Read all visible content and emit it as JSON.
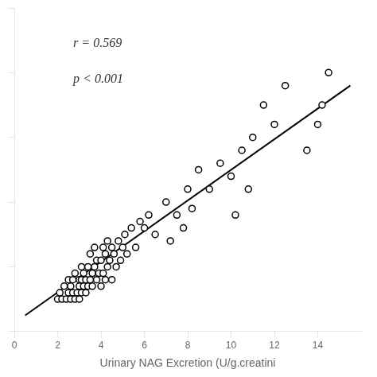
{
  "chart_data": {
    "type": "scatter",
    "xlabel": "Urinary NAG Excretion (U/g.creatini",
    "annotations": [
      "r = 0.569",
      "p < 0.001"
    ],
    "series": [
      {
        "type": "scatter",
        "marker": "open_circle",
        "color": "black",
        "x": [
          2.0,
          2.1,
          2.2,
          2.3,
          2.4,
          2.5,
          2.5,
          2.6,
          2.6,
          2.7,
          2.7,
          2.8,
          2.8,
          2.9,
          3.0,
          3.0,
          3.0,
          3.1,
          3.1,
          3.1,
          3.2,
          3.2,
          3.3,
          3.3,
          3.4,
          3.4,
          3.5,
          3.5,
          3.6,
          3.6,
          3.7,
          3.7,
          3.8,
          3.8,
          3.9,
          4.0,
          4.0,
          4.1,
          4.1,
          4.2,
          4.2,
          4.3,
          4.3,
          4.4,
          4.5,
          4.5,
          4.6,
          4.7,
          4.8,
          4.9,
          5.0,
          5.1,
          5.2,
          5.4,
          5.6,
          5.8,
          6.0,
          6.2,
          6.5,
          7.0,
          7.2,
          7.5,
          7.8,
          8.0,
          8.2,
          8.5,
          9.0,
          9.5,
          10.0,
          10.2,
          10.5,
          10.8,
          11.0,
          11.5,
          12.0,
          12.5,
          13.5,
          14.0,
          14.2,
          14.5
        ],
        "values": [
          5,
          6,
          5,
          7,
          5,
          6,
          8,
          5,
          7,
          6,
          8,
          5,
          9,
          6,
          5,
          7,
          8,
          6,
          8,
          10,
          7,
          9,
          6,
          8,
          7,
          10,
          8,
          12,
          7,
          9,
          10,
          13,
          8,
          11,
          9,
          7,
          11,
          9,
          13,
          8,
          12,
          10,
          14,
          11,
          8,
          13,
          12,
          10,
          14,
          11,
          13,
          15,
          12,
          16,
          13,
          17,
          16,
          18,
          15,
          20,
          14,
          18,
          16,
          22,
          19,
          25,
          22,
          26,
          24,
          18,
          28,
          22,
          30,
          35,
          32,
          38,
          28,
          32,
          35,
          40
        ]
      },
      {
        "type": "line",
        "line_style": "solid",
        "color": "black",
        "x": [
          0.5,
          15.5
        ],
        "values": [
          2.5,
          38
        ]
      }
    ],
    "xlim": [
      0,
      16
    ],
    "ylim": [
      0,
      50
    ],
    "xticks": [
      0,
      2,
      4,
      6,
      8,
      10,
      12,
      14
    ],
    "yticks": [
      0,
      10,
      20,
      30,
      40,
      50
    ],
    "grid": false,
    "tick_labels": "x"
  }
}
